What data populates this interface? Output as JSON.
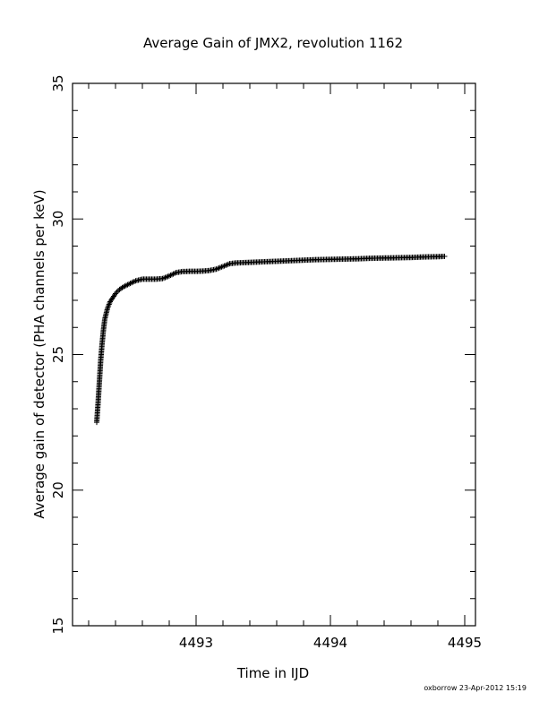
{
  "chart_data": {
    "type": "scatter",
    "title": "Average Gain of JMX2, revolution 1162",
    "xlabel": "Time in IJD",
    "ylabel": "Average gain of detector (PHA channels per keV)",
    "xlim": [
      4492.08,
      4495.08
    ],
    "ylim": [
      15,
      35
    ],
    "x_ticks": [
      4493,
      4494,
      4495
    ],
    "x_tick_labels": [
      "4493",
      "4494",
      "4495"
    ],
    "y_ticks": [
      15,
      20,
      25,
      30,
      35
    ],
    "y_tick_labels": [
      "15",
      "20",
      "25",
      "30",
      "35"
    ],
    "marker": "+",
    "grid": false,
    "series": [
      {
        "x": [
          4492.26,
          4492.27,
          4492.28,
          4492.29,
          4492.3,
          4492.31,
          4492.32,
          4492.34,
          4492.36,
          4492.38,
          4492.4,
          4492.43,
          4492.46,
          4492.5,
          4492.55,
          4492.6,
          4492.65,
          4492.7,
          4492.75,
          4492.8,
          4492.85,
          4492.9,
          4492.95,
          4493.0,
          4493.05,
          4493.1,
          4493.15,
          4493.2,
          4493.25,
          4493.3,
          4493.4,
          4493.5,
          4493.6,
          4493.7,
          4493.8,
          4493.9,
          4494.0,
          4494.1,
          4494.2,
          4494.3,
          4494.4,
          4494.5,
          4494.6,
          4494.7,
          4494.8,
          4494.85
        ],
        "y": [
          22.5,
          23.2,
          24.0,
          24.8,
          25.4,
          25.9,
          26.3,
          26.7,
          26.95,
          27.1,
          27.25,
          27.4,
          27.5,
          27.6,
          27.72,
          27.78,
          27.78,
          27.78,
          27.8,
          27.9,
          28.02,
          28.06,
          28.07,
          28.07,
          28.08,
          28.1,
          28.15,
          28.25,
          28.35,
          28.38,
          28.4,
          28.42,
          28.44,
          28.46,
          28.48,
          28.5,
          28.51,
          28.52,
          28.53,
          28.55,
          28.56,
          28.57,
          28.58,
          28.6,
          28.61,
          28.62
        ]
      }
    ]
  },
  "footer": "oxborrow 23-Apr-2012 15:19"
}
